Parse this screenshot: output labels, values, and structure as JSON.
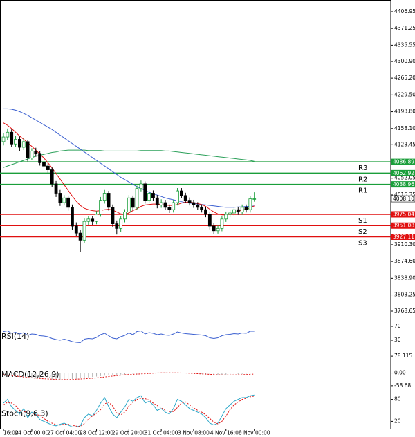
{
  "chart_data": [
    {
      "type": "candlestick",
      "categories": [
        "16:00",
        null,
        null,
        null,
        null,
        null,
        null,
        "24 Oct 00:00",
        null,
        null,
        null,
        null,
        null,
        null,
        null,
        "27 Oct 04:00",
        null,
        null,
        null,
        null,
        null,
        null,
        null,
        "28 Oct 12:00",
        null,
        null,
        null,
        null,
        null,
        null,
        null,
        "29 Oct 20:00",
        null,
        null,
        null,
        null,
        null,
        null,
        null,
        "31 Oct 04:00",
        null,
        null,
        null,
        null,
        null,
        null,
        null,
        "3 Nov 08:00",
        null,
        null,
        null,
        null,
        null,
        null,
        null,
        "4 Nov 16:00",
        null,
        null,
        null,
        null,
        null,
        null,
        "6 Nov 00:00"
      ],
      "open": [
        4130,
        4140,
        4150,
        4125,
        4135,
        4118,
        4130,
        4095,
        4110,
        4105,
        4085,
        4078,
        4070,
        4040,
        4020,
        4000,
        4010,
        3990,
        3950,
        3935,
        3920,
        3960,
        3965,
        3960,
        3975,
        4005,
        4020,
        3990,
        3955,
        3945,
        3965,
        3980,
        4010,
        3990,
        4030,
        4040,
        4005,
        4020,
        4010,
        3995,
        4000,
        3990,
        3985,
        4000,
        4025,
        4015,
        4005,
        4000,
        3995,
        3990,
        3985,
        3975,
        3950,
        3940,
        3945,
        3965,
        3975,
        3978,
        3985,
        3980,
        3990,
        3985,
        4008
      ],
      "high": [
        4148,
        4158,
        4156,
        4142,
        4141,
        4137,
        4134,
        4116,
        4117,
        4110,
        4092,
        4084,
        4075,
        4046,
        4027,
        4016,
        4015,
        3996,
        3958,
        3942,
        3966,
        3972,
        3971,
        3982,
        4012,
        4027,
        4025,
        3996,
        3962,
        3971,
        3986,
        4016,
        4015,
        4036,
        4047,
        4045,
        4026,
        4026,
        4016,
        4007,
        4006,
        3996,
        4006,
        4031,
        4031,
        4021,
        4011,
        4006,
        4001,
        3996,
        3991,
        3981,
        3956,
        3951,
        3971,
        3981,
        3984,
        3991,
        3991,
        3996,
        3996,
        4014,
        4022
      ],
      "low": [
        4122,
        4134,
        4118,
        4119,
        4110,
        4112,
        4088,
        4090,
        4098,
        4079,
        4072,
        4064,
        4033,
        4012,
        3993,
        3994,
        3983,
        3942,
        3928,
        3895,
        3914,
        3953,
        3952,
        3954,
        3970,
        3998,
        3983,
        3948,
        3932,
        3938,
        3958,
        3974,
        3983,
        3985,
        4024,
        3998,
        3999,
        4004,
        3988,
        3989,
        3984,
        3978,
        3979,
        3994,
        4009,
        3999,
        3994,
        3989,
        3984,
        3979,
        3969,
        3943,
        3933,
        3934,
        3939,
        3959,
        3969,
        3972,
        3974,
        3974,
        3979,
        3979,
        4002
      ],
      "close": [
        4140,
        4150,
        4125,
        4135,
        4118,
        4130,
        4095,
        4110,
        4105,
        4085,
        4078,
        4070,
        4040,
        4020,
        4000,
        4010,
        3990,
        3950,
        3935,
        3920,
        3960,
        3965,
        3960,
        3975,
        4005,
        4020,
        3990,
        3955,
        3945,
        3965,
        3980,
        4010,
        3990,
        4030,
        4040,
        4005,
        4020,
        4010,
        3995,
        4000,
        3990,
        3985,
        4000,
        4025,
        4015,
        4005,
        4000,
        3995,
        3990,
        3985,
        3975,
        3950,
        3940,
        3945,
        3965,
        3975,
        3978,
        3985,
        3980,
        3990,
        3985,
        4008,
        4008.1
      ],
      "up_color": "#1a9e3a",
      "down_color": "#000000",
      "series": [
        {
          "color": "#2ca05a",
          "values": [
            4075,
            4078,
            4081,
            4084,
            4087,
            4090,
            4093,
            4096,
            4099,
            4101,
            4103,
            4105,
            4107,
            4108,
            4110,
            4111,
            4112,
            4112,
            4112,
            4112,
            4112,
            4111,
            4111,
            4111,
            4111,
            4110,
            4110,
            4110,
            4110,
            4110,
            4110,
            4110,
            4110,
            4110,
            4111,
            4111,
            4111,
            4111,
            4111,
            4111,
            4110,
            4110,
            4109,
            4108,
            4107,
            4106,
            4105,
            4104,
            4103,
            4102,
            4101,
            4100,
            4099,
            4098,
            4097,
            4096,
            4095,
            4094,
            4093,
            4092,
            4091,
            4090,
            4088
          ]
        },
        {
          "color": "#3a5fd0",
          "values": [
            4200,
            4200,
            4199,
            4197,
            4194,
            4190,
            4186,
            4181,
            4176,
            4171,
            4166,
            4161,
            4156,
            4150,
            4144,
            4138,
            4132,
            4126,
            4120,
            4114,
            4108,
            4102,
            4096,
            4090,
            4084,
            4078,
            4072,
            4066,
            4060,
            4054,
            4049,
            4044,
            4039,
            4034,
            4030,
            4026,
            4022,
            4019,
            4016,
            4013,
            4010,
            4008,
            4006,
            4004,
            4002,
            4000,
            3999,
            3998,
            3997,
            3996,
            3995,
            3994,
            3993,
            3992,
            3991,
            3990,
            3990,
            3990,
            3991,
            3991,
            3992,
            3992,
            3993
          ]
        },
        {
          "color": "#e01010",
          "values": [
            4170,
            4165,
            4158,
            4150,
            4142,
            4135,
            4128,
            4120,
            4112,
            4104,
            4095,
            4085,
            4074,
            4062,
            4050,
            4038,
            4026,
            4014,
            4003,
            3994,
            3988,
            3985,
            3983,
            3982,
            3983,
            3985,
            3986,
            3984,
            3980,
            3976,
            3975,
            3978,
            3983,
            3987,
            3992,
            3995,
            3996,
            3997,
            3997,
            3996,
            3995,
            3994,
            3994,
            3996,
            3999,
            4001,
            4001,
            4000,
            3998,
            3996,
            3992,
            3986,
            3980,
            3976,
            3974,
            3974,
            3976,
            3979,
            3982,
            3984,
            3986,
            3989,
            3993
          ]
        }
      ],
      "levels": [
        {
          "name": "R3",
          "value": 4086.89,
          "color": "#1a9e3a"
        },
        {
          "name": "R2",
          "value": 4062.92,
          "color": "#1a9e3a"
        },
        {
          "name": "R1",
          "value": 4038.96,
          "color": "#1a9e3a"
        },
        {
          "name": "S1",
          "value": 3975.04,
          "color": "#e01010"
        },
        {
          "name": "S2",
          "value": 3951.08,
          "color": "#e01010"
        },
        {
          "name": "S3",
          "value": 3927.11,
          "color": "#e01010"
        }
      ],
      "last_price": {
        "value": 4008.1,
        "label": "4008.10"
      },
      "ylim": [
        3761.3,
        4429.0
      ],
      "yticks": [
        4406.95,
        4371.25,
        4335.55,
        {
          "value": 4300.9,
          "label": "4300.90"
        },
        {
          "value": 4265.2,
          "label": "4265.20"
        },
        {
          "value": 4229.5,
          "label": "4229.50"
        },
        {
          "value": 4193.8,
          "label": "4193.80"
        },
        {
          "value": 4158.1,
          "label": "4158.10"
        },
        4123.45,
        4052.05,
        4016.35,
        {
          "value": 3910.3,
          "label": "3910.30"
        },
        {
          "value": 3874.6,
          "label": "3874.60"
        },
        {
          "value": 3838.9,
          "label": "3838.90"
        },
        3803.25,
        3768.65
      ]
    },
    {
      "type": "line",
      "title": "RSI(14)",
      "ylim": [
        0,
        100
      ],
      "yticks": [
        70,
        30
      ],
      "series": [
        {
          "color": "#3a5fd0",
          "values": [
            55,
            57,
            50,
            53,
            48,
            52,
            44,
            48,
            47,
            43,
            42,
            40,
            35,
            32,
            30,
            33,
            30,
            26,
            24,
            23,
            33,
            35,
            34,
            38,
            46,
            50,
            43,
            36,
            34,
            40,
            44,
            51,
            46,
            55,
            57,
            48,
            52,
            50,
            46,
            48,
            45,
            44,
            48,
            54,
            51,
            49,
            48,
            47,
            46,
            45,
            43,
            37,
            35,
            37,
            43,
            46,
            47,
            49,
            48,
            51,
            50,
            56,
            56
          ]
        }
      ]
    },
    {
      "type": "macd",
      "title": "MACD(12,26,9)",
      "ylim": [
        -81.5,
        97.7
      ],
      "yticks": [
        78.115,
        {
          "value": 0,
          "label": "0.00"
        },
        -58.68
      ],
      "hist_color": "#b0b0b0",
      "values": [
        -10,
        -12,
        -15,
        -17,
        -18,
        -20,
        -22,
        -24,
        -25,
        -26,
        -27,
        -28,
        -30,
        -31,
        -32,
        -30,
        -28,
        -27,
        -26,
        -24,
        -22,
        -20,
        -18,
        -16,
        -14,
        -12,
        -10,
        -9,
        -8,
        -7,
        -6,
        -5,
        -4,
        -3,
        -2,
        -1,
        0,
        1,
        2,
        2,
        3,
        3,
        2,
        2,
        1,
        0,
        -1,
        -2,
        -3,
        -4,
        -5,
        -6,
        -7,
        -8,
        -8,
        -8,
        -7,
        -6,
        -5,
        -4,
        -3,
        -2,
        -1
      ],
      "series": [
        {
          "color": "#e01010",
          "dashed": true,
          "values": [
            -8,
            -10,
            -12,
            -14,
            -16,
            -18,
            -20,
            -22,
            -24,
            -25,
            -26,
            -27,
            -28,
            -29,
            -30,
            -30,
            -30,
            -29,
            -28,
            -27,
            -26,
            -25,
            -24,
            -22,
            -20,
            -18,
            -16,
            -14,
            -12,
            -10,
            -8,
            -7,
            -6,
            -5,
            -4,
            -3,
            -2,
            -1,
            0,
            1,
            1,
            1,
            1,
            1,
            0,
            0,
            -1,
            -2,
            -3,
            -4,
            -5,
            -6,
            -7,
            -8,
            -9,
            -9,
            -9,
            -9,
            -8,
            -8,
            -7,
            -6,
            -5
          ]
        }
      ]
    },
    {
      "type": "line",
      "title": "Stoch(9,6,3)",
      "ylim": [
        0,
        100
      ],
      "yticks": [
        80,
        20
      ],
      "series": [
        {
          "color": "#2aa7c9",
          "values": [
            70,
            80,
            60,
            50,
            40,
            55,
            30,
            45,
            40,
            25,
            20,
            15,
            10,
            8,
            12,
            15,
            10,
            5,
            5,
            8,
            30,
            40,
            35,
            50,
            70,
            85,
            60,
            40,
            30,
            45,
            60,
            80,
            75,
            85,
            90,
            70,
            75,
            65,
            50,
            55,
            45,
            40,
            55,
            80,
            75,
            65,
            55,
            50,
            45,
            40,
            30,
            15,
            10,
            15,
            35,
            55,
            65,
            75,
            80,
            85,
            85,
            90,
            92
          ]
        },
        {
          "color": "#e01010",
          "dashed": true,
          "values": [
            65,
            72,
            70,
            63,
            50,
            48,
            42,
            43,
            38,
            37,
            28,
            20,
            15,
            11,
            10,
            12,
            12,
            10,
            7,
            6,
            14,
            26,
            35,
            42,
            52,
            68,
            72,
            62,
            43,
            38,
            45,
            62,
            72,
            80,
            83,
            82,
            78,
            70,
            63,
            57,
            50,
            47,
            47,
            58,
            70,
            73,
            65,
            57,
            50,
            45,
            38,
            28,
            18,
            13,
            20,
            35,
            52,
            65,
            73,
            80,
            83,
            87,
            89
          ]
        }
      ]
    }
  ]
}
